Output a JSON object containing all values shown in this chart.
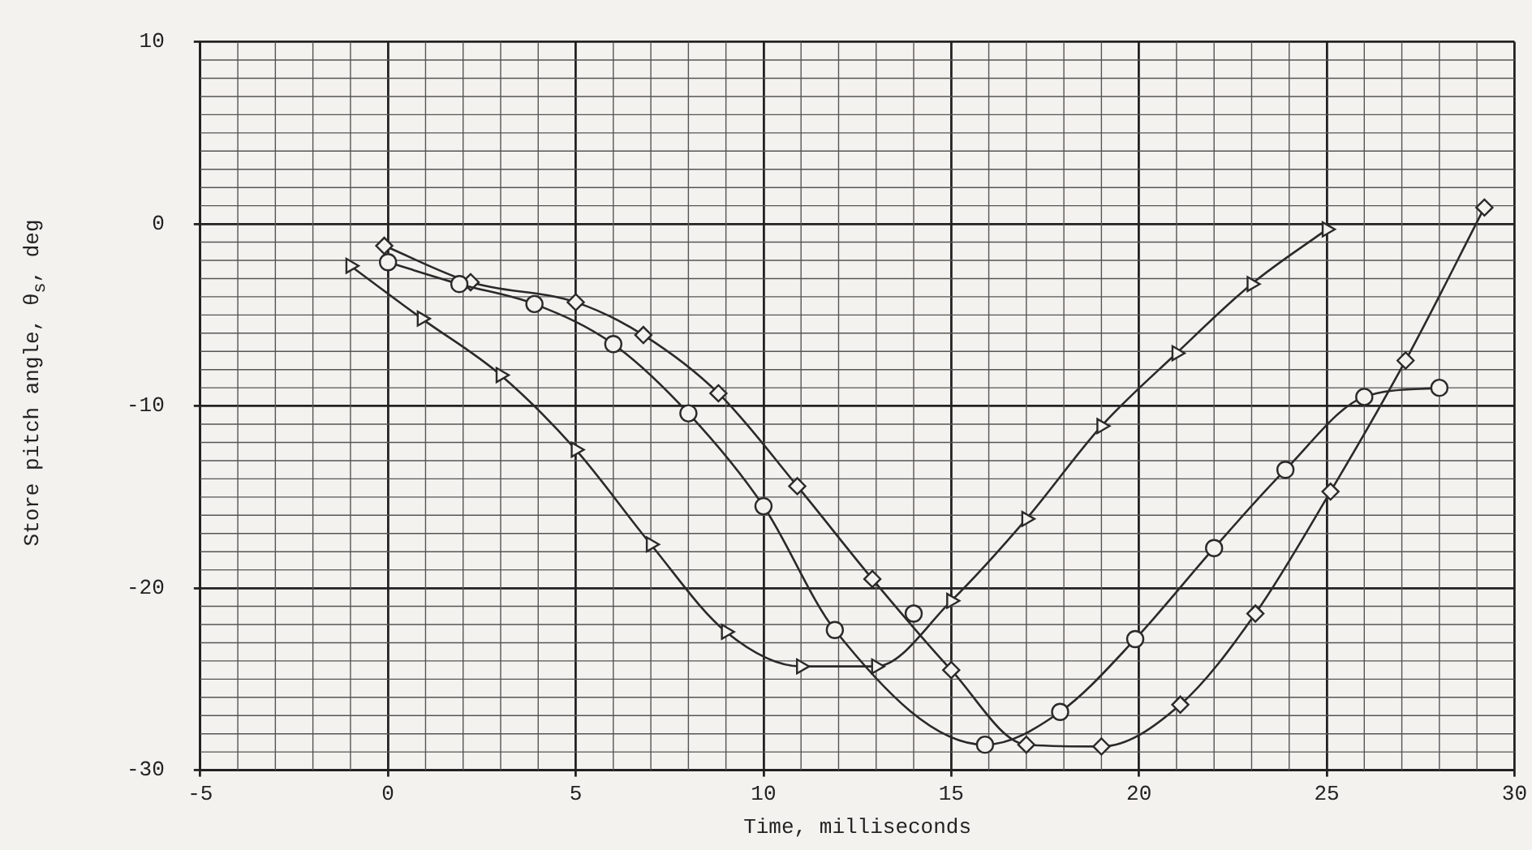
{
  "chart_data": {
    "type": "line",
    "xlabel": "Time, milliseconds",
    "ylabel": "Store pitch angle, θ$_{s}$, deg",
    "xlim": [
      -5,
      30
    ],
    "xticks": [
      -5,
      0,
      5,
      10,
      15,
      20,
      25,
      30
    ],
    "ylim": [
      -30,
      10
    ],
    "yticks": [
      -30,
      -20,
      -10,
      0,
      10
    ],
    "grid": true,
    "legend": false,
    "series": [
      {
        "color": "#2a2a2a",
        "marker": "triangle",
        "x": [
          -1,
          0.9,
          3,
          5,
          7,
          9,
          11,
          13,
          15,
          17,
          19,
          21,
          23,
          25
        ],
        "values": [
          -2.3,
          -5.2,
          -8.3,
          -12.4,
          -17.6,
          -22.4,
          -24.3,
          -24.3,
          -20.7,
          -16.2,
          -11.1,
          -7.1,
          -3.3,
          -0.3
        ]
      },
      {
        "color": "#2a2a2a",
        "marker": "circle",
        "x": [
          0,
          1.9,
          3.9,
          6,
          8,
          10,
          11.9,
          15.9,
          17.9,
          19.9,
          22,
          23.9,
          26,
          28
        ],
        "values": [
          -2.1,
          -3.3,
          -4.4,
          -6.6,
          -10.4,
          -15.5,
          -22.3,
          -28.6,
          -26.8,
          -22.8,
          -17.8,
          -13.5,
          -9.5,
          -9
        ]
      },
      {
        "type": "scatter",
        "color": "#2a2a2a",
        "marker": "circle",
        "x": [
          14
        ],
        "values": [
          -21.4
        ]
      },
      {
        "color": "#2a2a2a",
        "marker": "diamond",
        "x": [
          -0.1,
          2.2,
          5,
          6.8,
          8.8,
          10.9,
          12.9,
          15,
          17,
          19,
          21.1,
          23.1,
          25.1,
          27.1,
          29.2
        ],
        "values": [
          -1.2,
          -3.2,
          -4.3,
          -6.1,
          -9.3,
          -14.4,
          -19.5,
          -24.5,
          -28.6,
          -28.7,
          -26.4,
          -21.4,
          -14.7,
          -7.5,
          0.9
        ]
      }
    ]
  }
}
